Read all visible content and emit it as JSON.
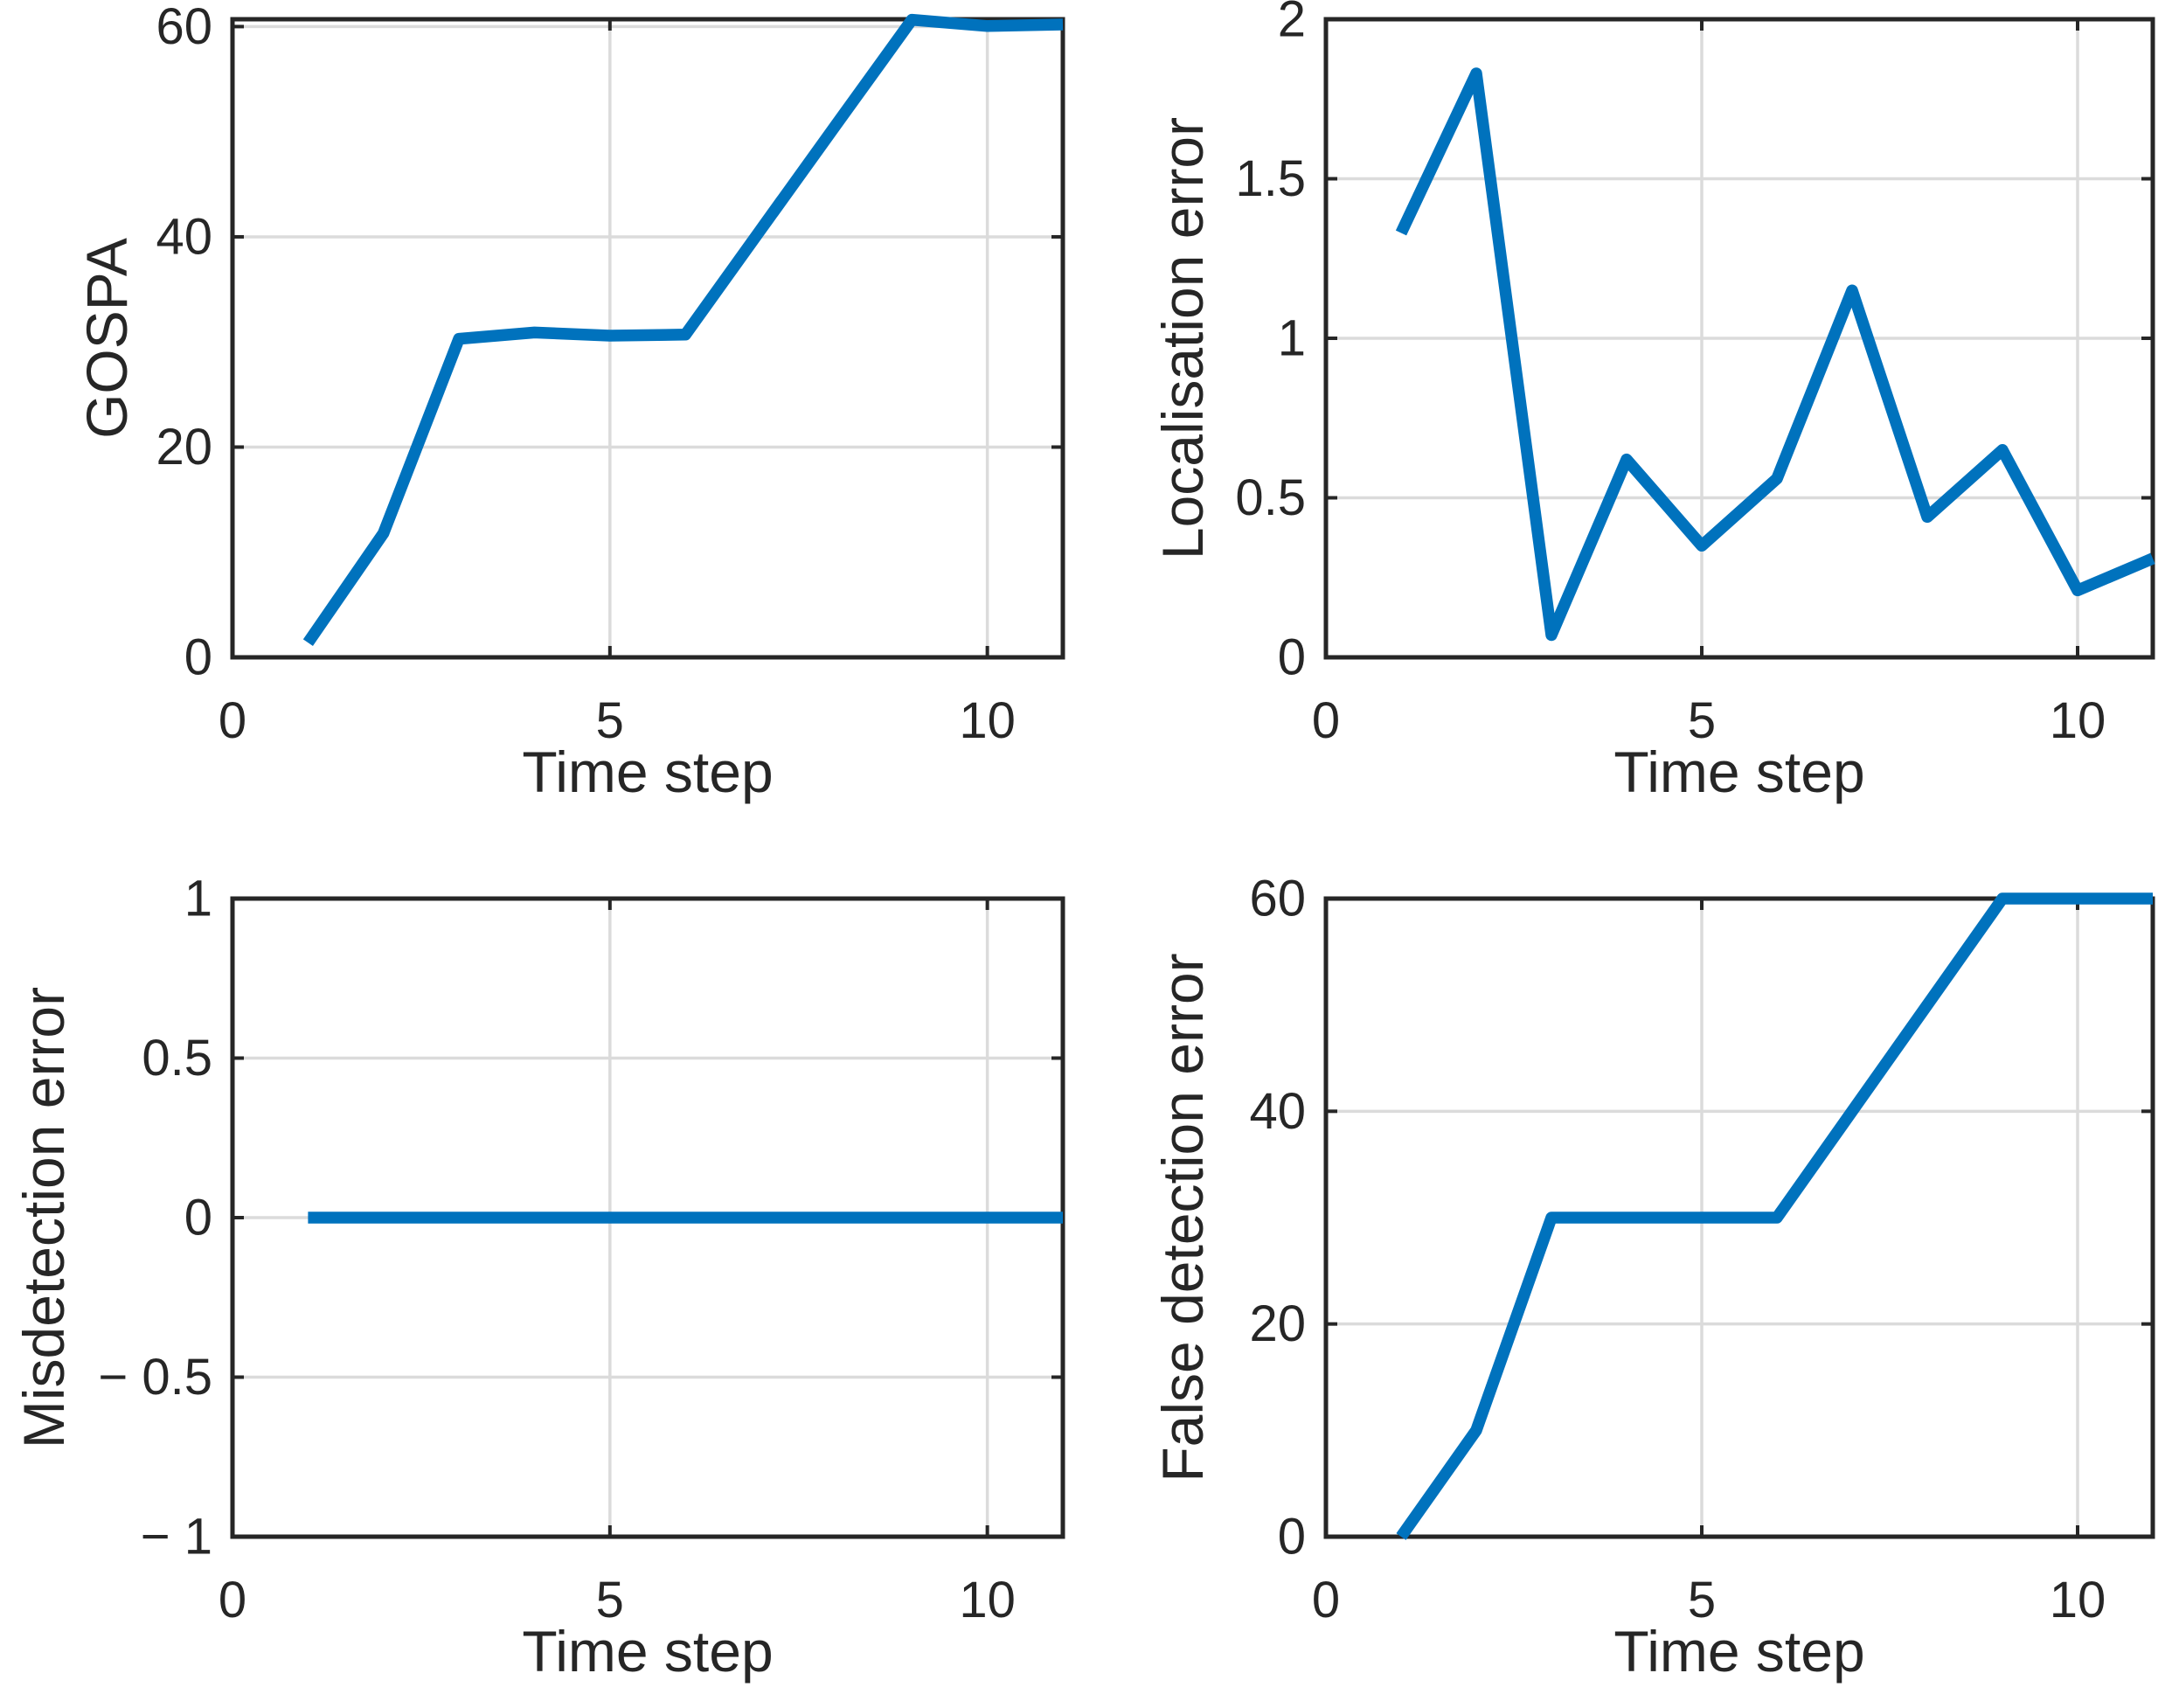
{
  "figure": {
    "background_color": "#ffffff",
    "title": ""
  },
  "styles": {
    "line_color": "#0072BD",
    "grid_color": "#DBDBDB",
    "axis_color": "#262626",
    "text_color": "#262626"
  },
  "chart_data": [
    {
      "id": "gospa",
      "type": "line",
      "title": "",
      "xlabel": "Time step",
      "ylabel": "GOSPA",
      "x": [
        1,
        2,
        3,
        4,
        5,
        6,
        7,
        8,
        9,
        10,
        11
      ],
      "y": [
        1.4,
        11.8,
        30.3,
        30.9,
        30.6,
        30.7,
        40.7,
        50.7,
        60.65,
        60.05,
        60.2
      ],
      "xlim": [
        0,
        11
      ],
      "ylim": [
        0,
        60.7
      ],
      "xticks": [
        0,
        5,
        10
      ],
      "xtick_labels": [
        "0",
        "5",
        "10"
      ],
      "yticks": [
        0,
        20,
        40,
        60
      ],
      "ytick_labels": [
        "0",
        "20",
        "40",
        "60"
      ],
      "grid": true,
      "legend": null,
      "line_color": "#0072BD",
      "line_width": 13.5
    },
    {
      "id": "localisation-error",
      "type": "line",
      "title": "",
      "xlabel": "Time step",
      "ylabel": "Localisation error",
      "x": [
        1,
        2,
        3,
        4,
        5,
        6,
        7,
        8,
        9,
        10,
        11
      ],
      "y": [
        1.33,
        1.83,
        0.07,
        0.62,
        0.35,
        0.56,
        1.15,
        0.44,
        0.65,
        0.21,
        0.31
      ],
      "xlim": [
        0,
        11
      ],
      "ylim": [
        0,
        2
      ],
      "xticks": [
        0,
        5,
        10
      ],
      "xtick_labels": [
        "0",
        "5",
        "10"
      ],
      "yticks": [
        0,
        0.5,
        1,
        1.5,
        2
      ],
      "ytick_labels": [
        "0",
        "0.5",
        "1",
        "1.5",
        "2"
      ],
      "grid": true,
      "legend": null,
      "line_color": "#0072BD",
      "line_width": 13.5
    },
    {
      "id": "misdetection-error",
      "type": "line",
      "title": "",
      "xlabel": "Time step",
      "ylabel": "Misdetection error",
      "x": [
        1,
        2,
        3,
        4,
        5,
        6,
        7,
        8,
        9,
        10,
        11
      ],
      "y": [
        0,
        0,
        0,
        0,
        0,
        0,
        0,
        0,
        0,
        0,
        0
      ],
      "xlim": [
        0,
        11
      ],
      "ylim": [
        -1,
        1
      ],
      "xticks": [
        0,
        5,
        10
      ],
      "xtick_labels": [
        "0",
        "5",
        "10"
      ],
      "yticks": [
        -1,
        -0.5,
        0,
        0.5,
        1
      ],
      "ytick_labels": [
        "− 1",
        "− 0.5",
        "0",
        "0.5",
        "1"
      ],
      "grid": true,
      "legend": null,
      "line_color": "#0072BD",
      "line_width": 13.5
    },
    {
      "id": "false-detection-error",
      "type": "line",
      "title": "",
      "xlabel": "Time step",
      "ylabel": "False detection error",
      "x": [
        1,
        2,
        3,
        4,
        5,
        6,
        7,
        8,
        9,
        10,
        11
      ],
      "y": [
        0,
        10,
        30,
        30,
        30,
        30,
        40,
        50,
        60,
        60,
        60
      ],
      "xlim": [
        0,
        11
      ],
      "ylim": [
        0,
        60
      ],
      "xticks": [
        0,
        5,
        10
      ],
      "xtick_labels": [
        "0",
        "5",
        "10"
      ],
      "yticks": [
        0,
        20,
        40,
        60
      ],
      "ytick_labels": [
        "0",
        "20",
        "40",
        "60"
      ],
      "grid": true,
      "legend": null,
      "line_color": "#0072BD",
      "line_width": 13.5
    }
  ]
}
